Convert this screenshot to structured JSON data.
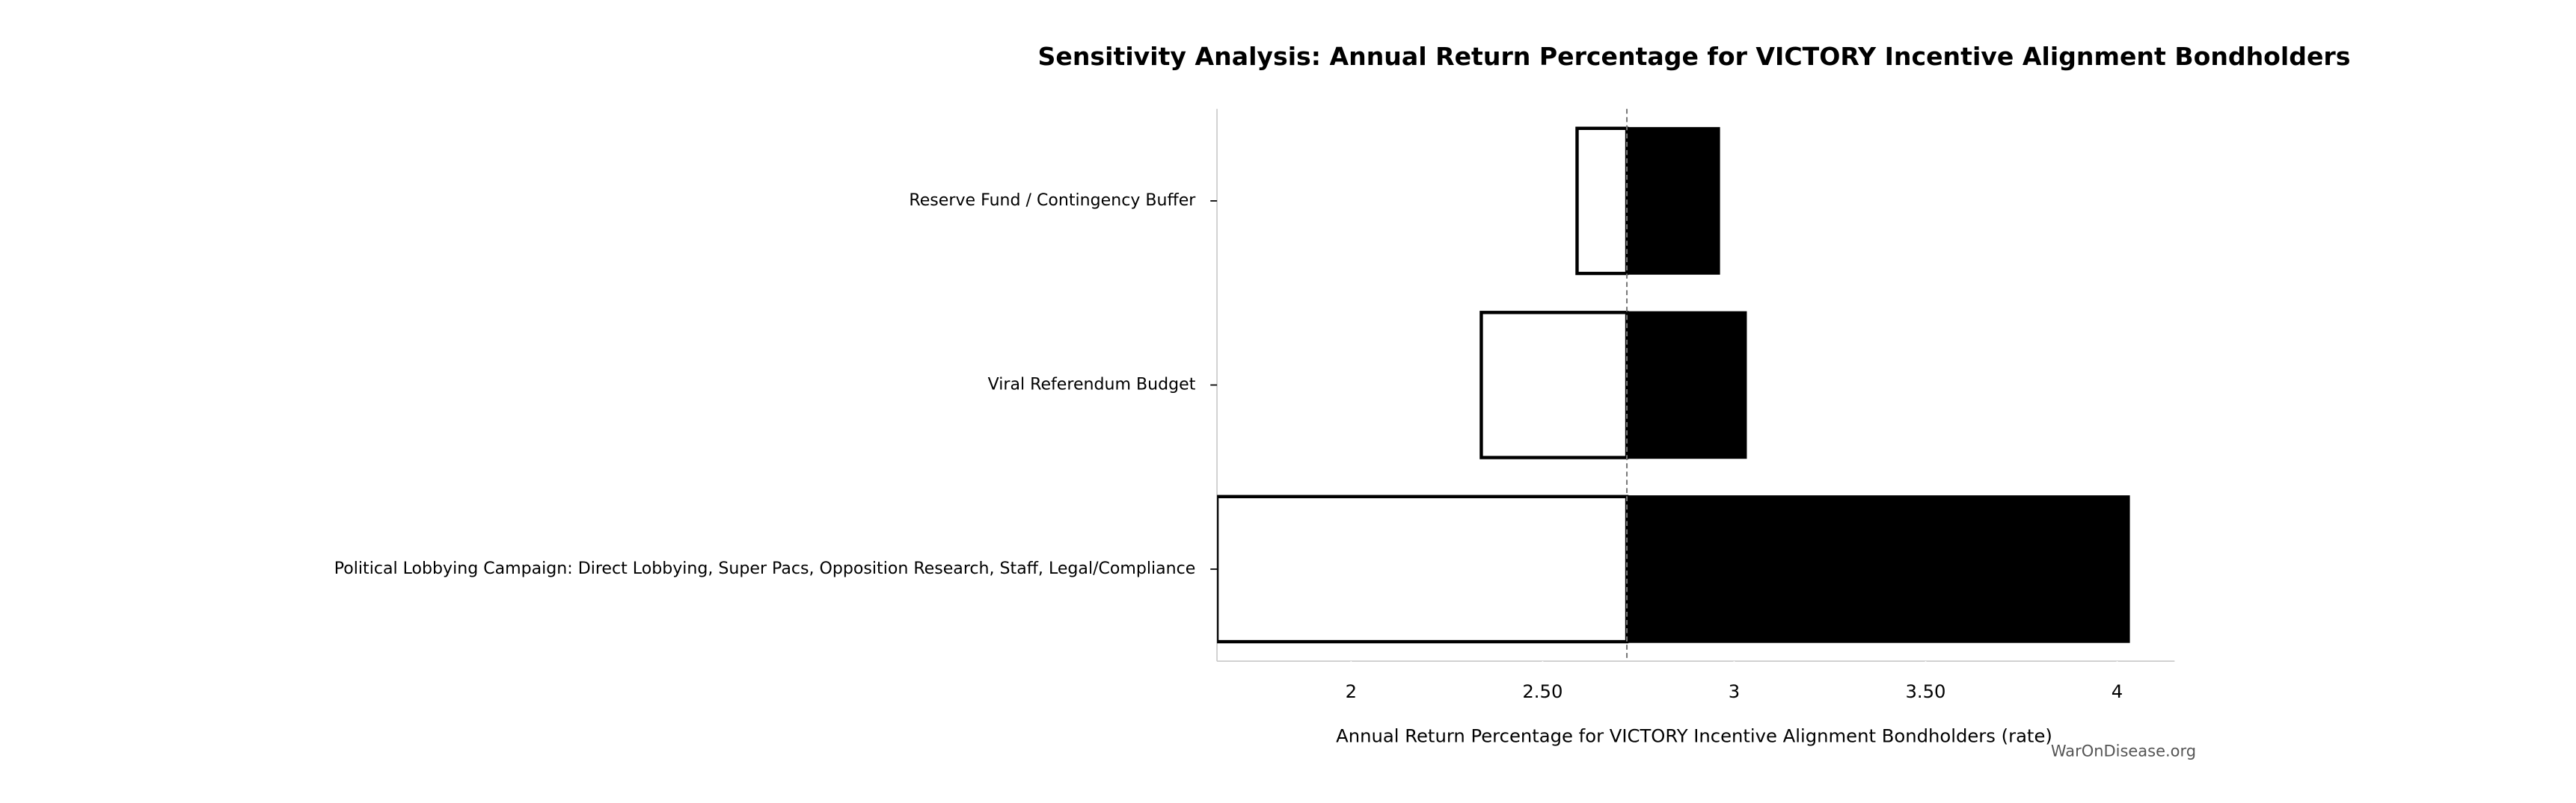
{
  "chart_data": {
    "type": "tornado",
    "title": "Sensitivity Analysis: Annual Return Percentage for VICTORY Incentive Alignment Bondholders",
    "x_label": "Annual Return Percentage for VICTORY Incentive Alignment Bondholders (rate)",
    "watermark": "WarOnDisease.org",
    "categories": [
      "Reserve Fund / Contingency Buffer",
      "Viral Referendum Budget",
      "Political Lobbying Campaign: Direct Lobbying, Super Pacs, Opposition Research, Staff, Legal/Compliance"
    ],
    "baseline": 2.72,
    "low_values": [
      2.59,
      2.34,
      1.65
    ],
    "high_values": [
      2.96,
      3.03,
      4.03
    ],
    "low_color": "#ffffff",
    "high_color": "#000000",
    "xlim": [
      1.65,
      4.15
    ],
    "xticks": [
      2,
      {
        "value": 2.5,
        "label": "2.50"
      },
      3,
      {
        "value": 3.5,
        "label": "3.50"
      },
      4
    ]
  }
}
